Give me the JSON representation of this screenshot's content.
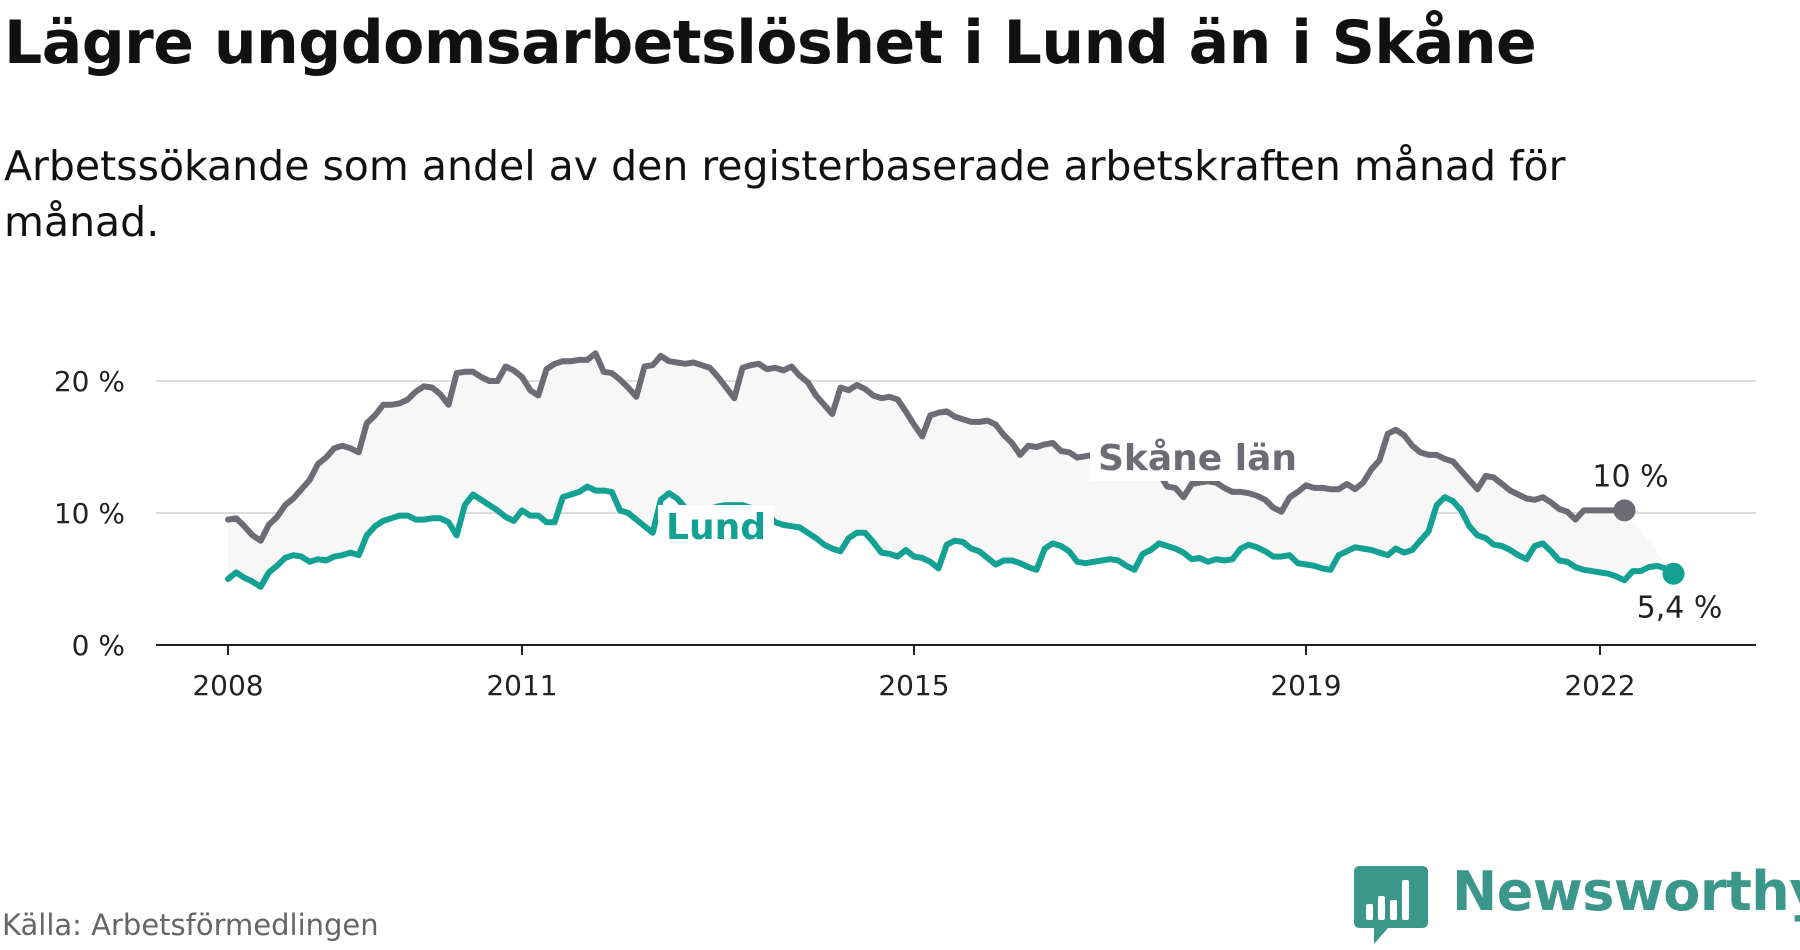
{
  "title": "Lägre ungdomsarbetslöshet i Lund än i Skåne",
  "subtitle": "Arbetssökande som andel av den registerbaserade arbetskraften månad för månad.",
  "source": "Källa: Arbetsförmedlingen",
  "logo": {
    "text": "Newsworthy",
    "icon": "newsworthy-bar-chart-icon"
  },
  "colors": {
    "skane": "#6d6b73",
    "lund": "#12a193",
    "band": "#f7f7f7",
    "grid": "#dddddd",
    "axis": "#222222",
    "logo": "#3a978a"
  },
  "chart_data": {
    "type": "line",
    "title": "Lägre ungdomsarbetslöshet i Lund än i Skåne",
    "xlabel": "",
    "ylabel": "",
    "ylim": [
      0,
      20
    ],
    "y_ticks": [
      {
        "value": 0,
        "label": "0 %"
      },
      {
        "value": 10,
        "label": "10 %"
      },
      {
        "value": 20,
        "label": "20 %"
      }
    ],
    "x_ticks": [
      {
        "value": 2008,
        "label": "2008"
      },
      {
        "value": 2011,
        "label": "2011"
      },
      {
        "value": 2015,
        "label": "2015"
      },
      {
        "value": 2019,
        "label": "2019"
      },
      {
        "value": 2022,
        "label": "2022"
      }
    ],
    "x_start": 2008,
    "x_step": 0.0833333,
    "series": [
      {
        "name": "Skåne län",
        "end_label": "10 %",
        "values": [
          9.5,
          9.6,
          9.0,
          8.3,
          7.9,
          9.1,
          9.7,
          10.6,
          11.1,
          11.8,
          12.5,
          13.7,
          14.2,
          14.9,
          15.1,
          14.9,
          14.6,
          16.8,
          17.4,
          18.2,
          18.2,
          18.3,
          18.6,
          19.2,
          19.6,
          19.5,
          19.0,
          18.2,
          20.6,
          20.7,
          20.7,
          20.3,
          20.0,
          20.0,
          21.1,
          20.8,
          20.3,
          19.3,
          18.9,
          20.9,
          21.3,
          21.5,
          21.5,
          21.6,
          21.6,
          22.1,
          20.7,
          20.6,
          20.1,
          19.5,
          18.8,
          21.1,
          21.2,
          21.9,
          21.5,
          21.4,
          21.3,
          21.4,
          21.2,
          21.0,
          20.3,
          19.5,
          18.7,
          21.0,
          21.2,
          21.3,
          20.9,
          21.0,
          20.8,
          21.1,
          20.4,
          19.9,
          18.9,
          18.2,
          17.5,
          19.5,
          19.3,
          19.7,
          19.4,
          18.9,
          18.7,
          18.8,
          18.6,
          17.7,
          16.7,
          15.8,
          17.4,
          17.6,
          17.7,
          17.3,
          17.1,
          16.9,
          16.9,
          17.0,
          16.7,
          15.9,
          15.3,
          14.4,
          15.1,
          15.0,
          15.2,
          15.3,
          14.7,
          14.6,
          14.2,
          14.3,
          14.4,
          14.5,
          14.5,
          14.6,
          14.4,
          14.2,
          13.8,
          13.4,
          13.0,
          12.0,
          11.9,
          11.2,
          12.2,
          12.3,
          12.4,
          12.3,
          11.9,
          11.6,
          11.6,
          11.5,
          11.3,
          11.0,
          10.4,
          10.1,
          11.2,
          11.6,
          12.1,
          11.9,
          11.9,
          11.8,
          11.8,
          12.2,
          11.8,
          12.3,
          13.3,
          14.0,
          16.0,
          16.3,
          15.9,
          15.1,
          14.6,
          14.4,
          14.4,
          14.1,
          13.9,
          13.2,
          12.5,
          11.8,
          12.8,
          12.7,
          12.2,
          11.7,
          11.4,
          11.1,
          11.0,
          11.2,
          10.8,
          10.3,
          10.1,
          9.5,
          10.2,
          10.2,
          10.2,
          10.2,
          10.2,
          10.2
        ]
      },
      {
        "name": "Lund",
        "end_label": "5,4 %",
        "values": [
          5.0,
          5.5,
          5.1,
          4.8,
          4.4,
          5.5,
          6.0,
          6.6,
          6.8,
          6.7,
          6.3,
          6.5,
          6.4,
          6.7,
          6.8,
          7.0,
          6.8,
          8.3,
          9.0,
          9.4,
          9.6,
          9.8,
          9.8,
          9.5,
          9.5,
          9.6,
          9.6,
          9.3,
          8.3,
          10.6,
          11.4,
          11.0,
          10.6,
          10.2,
          9.7,
          9.4,
          10.2,
          9.8,
          9.8,
          9.3,
          9.3,
          11.2,
          11.4,
          11.6,
          12.0,
          11.7,
          11.7,
          11.6,
          10.2,
          10.0,
          9.5,
          9.0,
          8.5,
          11.0,
          11.5,
          11.1,
          10.4,
          10.2,
          10.2,
          10.3,
          10.5,
          10.6,
          10.6,
          10.6,
          10.4,
          10.2,
          9.9,
          9.3,
          9.1,
          9.0,
          8.9,
          8.5,
          8.1,
          7.6,
          7.3,
          7.1,
          8.1,
          8.5,
          8.5,
          7.8,
          7.0,
          6.9,
          6.7,
          7.2,
          6.7,
          6.6,
          6.3,
          5.8,
          7.6,
          7.9,
          7.8,
          7.3,
          7.1,
          6.6,
          6.1,
          6.4,
          6.4,
          6.2,
          5.9,
          5.7,
          7.3,
          7.7,
          7.5,
          7.1,
          6.3,
          6.2,
          6.3,
          6.4,
          6.5,
          6.4,
          6.0,
          5.7,
          6.9,
          7.2,
          7.7,
          7.5,
          7.3,
          7.0,
          6.5,
          6.6,
          6.3,
          6.5,
          6.4,
          6.5,
          7.3,
          7.6,
          7.4,
          7.1,
          6.7,
          6.7,
          6.8,
          6.2,
          6.1,
          6.0,
          5.8,
          5.7,
          6.8,
          7.1,
          7.4,
          7.3,
          7.2,
          7.0,
          6.8,
          7.3,
          7.0,
          7.2,
          7.9,
          8.6,
          10.6,
          11.2,
          10.9,
          10.2,
          9.0,
          8.3,
          8.1,
          7.6,
          7.5,
          7.2,
          6.8,
          6.5,
          7.5,
          7.7,
          7.1,
          6.4,
          6.3,
          5.9,
          5.7,
          5.6,
          5.5,
          5.4,
          5.2,
          4.9,
          5.6,
          5.6,
          5.9,
          6.0,
          5.8,
          5.4
        ]
      }
    ]
  }
}
